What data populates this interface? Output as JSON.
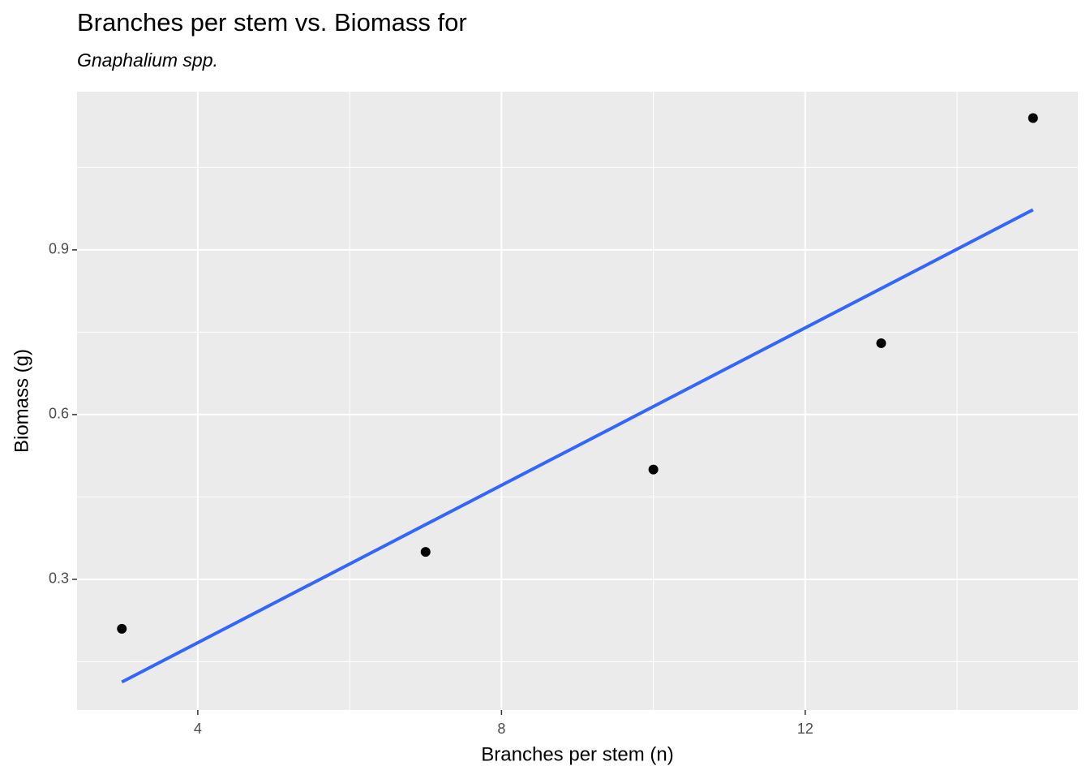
{
  "chart_data": {
    "type": "scatter",
    "title": "Branches per stem vs. Biomass for",
    "subtitle": "Gnaphalium spp.",
    "x_label": "Branches per stem (n)",
    "y_label": "Biomass (g)",
    "xlim": [
      2.41,
      15.59
    ],
    "ylim": [
      0.062,
      1.188
    ],
    "xticks": [
      4,
      8,
      12
    ],
    "yticks": [
      0.3,
      0.6,
      0.9
    ],
    "x_minor_grid": [
      6,
      10,
      14
    ],
    "y_minor_grid": [
      0.15,
      0.45,
      0.75,
      1.05
    ],
    "grid": true,
    "points": {
      "color": "#000000",
      "x": [
        3,
        7,
        10,
        13,
        15
      ],
      "y": [
        0.21,
        0.35,
        0.5,
        0.73,
        1.14
      ]
    },
    "fit_line": {
      "color": "#3366ff",
      "x": [
        3,
        15
      ],
      "y": [
        0.113,
        0.973
      ]
    }
  }
}
